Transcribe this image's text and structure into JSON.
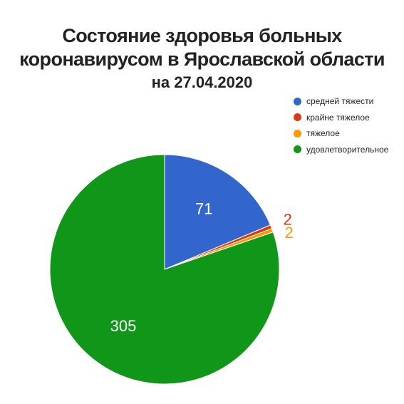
{
  "chart_data": {
    "type": "pie",
    "title_lines": [
      "Состояние здоровья больных",
      "коронавирусом в Ярославской области"
    ],
    "subtitle": "на 27.04.2020",
    "slices": [
      {
        "label": "средней тяжести",
        "value": 71,
        "color": "#3366cc",
        "label_color": "#ffffff"
      },
      {
        "label": "крайне тяжелое",
        "value": 2,
        "color": "#dc3912",
        "label_color": "#dc3912"
      },
      {
        "label": "тяжелое",
        "value": 2,
        "color": "#ff9900",
        "label_color": "#ff9900"
      },
      {
        "label": "удовлетворительное",
        "value": 305,
        "color": "#109618",
        "label_color": "#ffffff"
      }
    ],
    "legend_position": "top-right",
    "start_angle": "12 o'clock",
    "direction": "clockwise"
  }
}
